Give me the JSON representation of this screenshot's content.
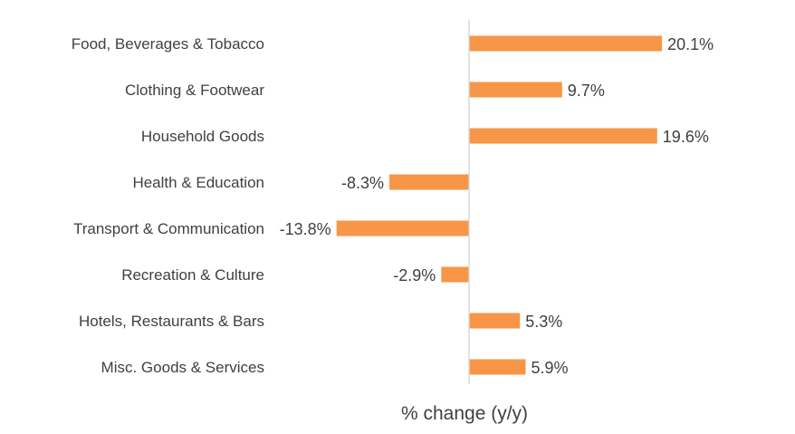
{
  "chart_data": {
    "type": "bar",
    "orientation": "horizontal",
    "categories": [
      "Food, Beverages & Tobacco",
      "Clothing & Footwear",
      "Household Goods",
      "Health & Education",
      "Transport & Communication",
      "Recreation & Culture",
      "Hotels, Restaurants & Bars",
      "Misc. Goods & Services"
    ],
    "values": [
      20.1,
      9.7,
      19.6,
      -8.3,
      -13.8,
      -2.9,
      5.3,
      5.9
    ],
    "value_labels": [
      "20.1%",
      "9.7%",
      "19.6%",
      "-8.3%",
      "-13.8%",
      "-2.9%",
      "5.3%",
      "5.9%"
    ],
    "title": "",
    "xlabel": "% change (y/y)",
    "ylabel": "",
    "xlim": [
      -20,
      25
    ],
    "grid": false,
    "legend": "none",
    "bar_color": "#F79646",
    "axis_color": "#D9D9D9"
  }
}
